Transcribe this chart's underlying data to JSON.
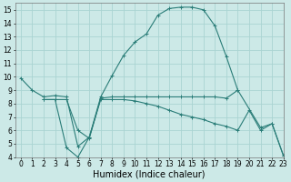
{
  "xlabel": "Humidex (Indice chaleur)",
  "xlim": [
    -0.5,
    23
  ],
  "ylim": [
    4,
    15.5
  ],
  "xticks": [
    0,
    1,
    2,
    3,
    4,
    5,
    6,
    7,
    8,
    9,
    10,
    11,
    12,
    13,
    14,
    15,
    16,
    17,
    18,
    19,
    20,
    21,
    22,
    23
  ],
  "yticks": [
    4,
    5,
    6,
    7,
    8,
    9,
    10,
    11,
    12,
    13,
    14,
    15
  ],
  "bg_color": "#cce9e7",
  "grid_color": "#aad4d2",
  "line_color": "#2a7d78",
  "lines": [
    {
      "x": [
        0,
        1,
        2,
        3,
        4,
        5,
        6,
        7,
        8,
        9,
        10,
        11,
        12,
        13,
        14,
        15,
        16,
        17,
        18,
        19
      ],
      "y": [
        9.9,
        9.0,
        8.5,
        8.6,
        8.5,
        4.8,
        5.5,
        8.5,
        10.1,
        11.6,
        12.6,
        13.2,
        14.6,
        15.1,
        15.2,
        15.2,
        15.0,
        13.8,
        11.5,
        9.0
      ]
    },
    {
      "x": [
        2,
        3,
        4,
        5,
        6,
        7,
        8,
        9,
        10,
        11,
        12,
        13,
        14,
        15,
        16,
        17,
        18,
        19,
        21,
        22,
        23
      ],
      "y": [
        8.3,
        8.3,
        8.3,
        6.0,
        5.4,
        8.4,
        8.5,
        8.5,
        8.5,
        8.5,
        8.5,
        8.5,
        8.5,
        8.5,
        8.5,
        8.5,
        8.4,
        9.0,
        6.2,
        6.5,
        4.1
      ]
    },
    {
      "x": [
        2,
        3,
        4,
        5,
        6,
        7,
        8,
        9,
        10,
        11,
        12,
        13,
        14,
        15,
        16,
        17,
        18,
        19,
        20,
        21,
        22,
        23
      ],
      "y": [
        8.3,
        8.3,
        4.7,
        4.0,
        5.5,
        8.3,
        8.3,
        8.3,
        8.2,
        8.0,
        7.8,
        7.5,
        7.2,
        7.0,
        6.8,
        6.5,
        6.3,
        6.0,
        7.5,
        6.0,
        6.5,
        4.1
      ]
    }
  ],
  "font_size_axis": 7,
  "font_size_tick": 5.5
}
